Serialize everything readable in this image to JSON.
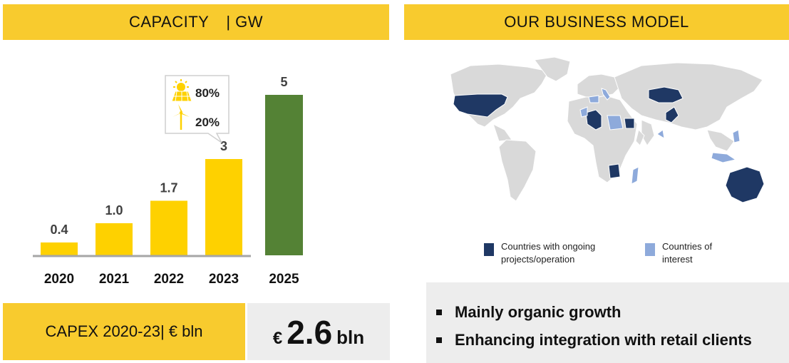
{
  "left_panel": {
    "header": {
      "title": "CAPACITY",
      "unit": "| GW"
    },
    "callout": [
      {
        "icon": "solar-panel-icon",
        "pct": "80%"
      },
      {
        "icon": "wind-turbine-icon",
        "pct": "20%"
      }
    ],
    "capex": {
      "label": "CAPEX 2020-23| € bln",
      "currency": "€",
      "value": "2.6",
      "unit": "bln"
    }
  },
  "chart_data": {
    "type": "bar",
    "categories": [
      "2020",
      "2021",
      "2022",
      "2023",
      "2025"
    ],
    "values": [
      0.4,
      1.0,
      1.7,
      3,
      5
    ],
    "value_labels": [
      "0.4",
      "1.0",
      "1.7",
      "3",
      "5"
    ],
    "colors": [
      "#fed100",
      "#fed100",
      "#fed100",
      "#fed100",
      "#548235"
    ],
    "ylim": [
      0,
      5
    ]
  },
  "right_panel": {
    "header": {
      "title": "OUR BUSINESS MODEL"
    },
    "legend": [
      {
        "label": "Countries with ongoing projects/operation",
        "color": "#1f3864"
      },
      {
        "label": "Countries of interest",
        "color": "#8eaadb"
      }
    ],
    "bullets": [
      "Mainly organic growth",
      "Enhancing integration with retail clients"
    ]
  },
  "colors": {
    "accent_yellow": "#f8cb2e",
    "bar_yellow": "#fed100",
    "bar_green": "#548235",
    "map_base": "#d9d9d9",
    "map_active": "#1f3864",
    "map_interest": "#8eaadb"
  }
}
